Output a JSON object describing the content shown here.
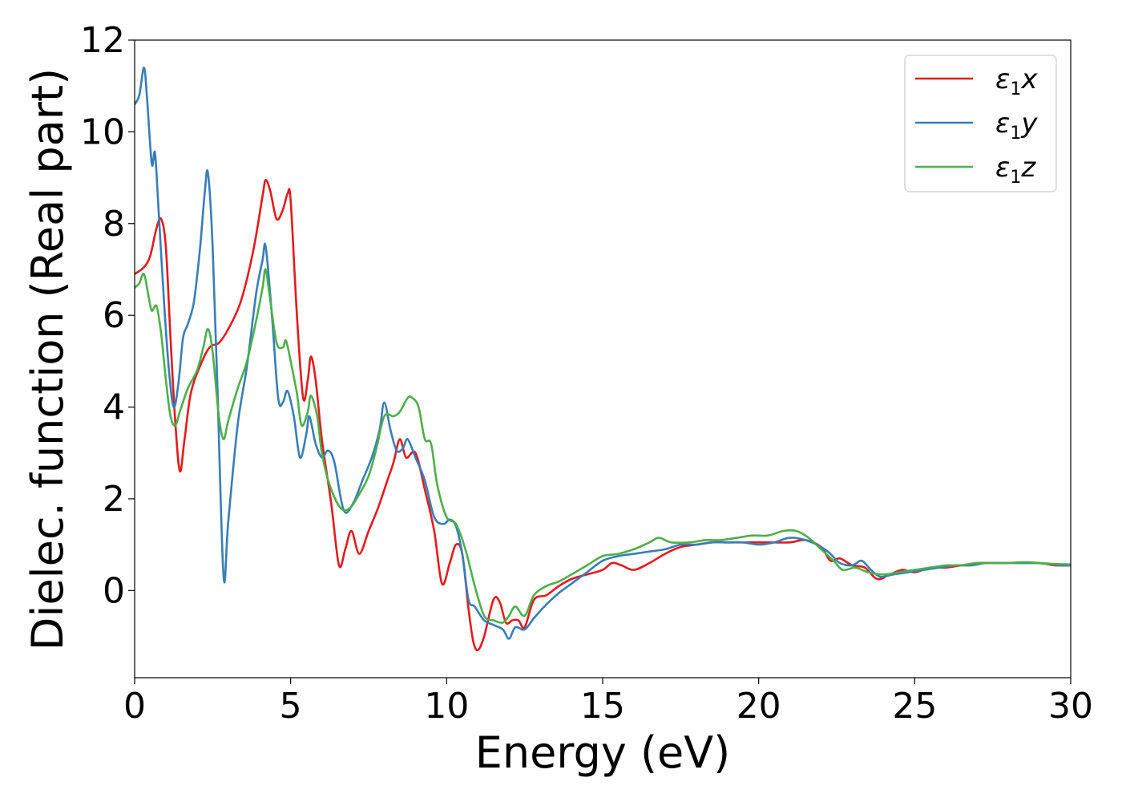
{
  "chart_data": {
    "type": "line",
    "title": "",
    "xlabel": "Energy (eV)",
    "ylabel": "Dielec. function (Real part)",
    "xlim": [
      0,
      30
    ],
    "ylim": [
      -1.9,
      12
    ],
    "xticks": [
      0,
      5,
      10,
      15,
      20,
      25,
      30
    ],
    "yticks": [
      0,
      2,
      4,
      6,
      8,
      10,
      12
    ],
    "grid": false,
    "legend_position": "top-right",
    "series": [
      {
        "name": "ε1x",
        "legend": {
          "main": "ε",
          "sub": "1",
          "tail": "x"
        },
        "color": "#e41a1c",
        "points": [
          [
            0,
            6.9
          ],
          [
            0.3,
            7.05
          ],
          [
            0.5,
            7.3
          ],
          [
            0.7,
            7.9
          ],
          [
            0.85,
            8.1
          ],
          [
            1.0,
            7.5
          ],
          [
            1.15,
            5.5
          ],
          [
            1.3,
            3.7
          ],
          [
            1.45,
            2.6
          ],
          [
            1.6,
            3.3
          ],
          [
            1.8,
            4.3
          ],
          [
            2.1,
            4.9
          ],
          [
            2.4,
            5.3
          ],
          [
            2.7,
            5.4
          ],
          [
            3.0,
            5.7
          ],
          [
            3.4,
            6.3
          ],
          [
            3.8,
            7.4
          ],
          [
            4.1,
            8.6
          ],
          [
            4.2,
            8.95
          ],
          [
            4.35,
            8.7
          ],
          [
            4.55,
            8.1
          ],
          [
            4.75,
            8.3
          ],
          [
            4.9,
            8.65
          ],
          [
            5.0,
            8.5
          ],
          [
            5.2,
            6.0
          ],
          [
            5.4,
            4.2
          ],
          [
            5.55,
            4.6
          ],
          [
            5.65,
            5.1
          ],
          [
            5.8,
            4.6
          ],
          [
            6.0,
            3.3
          ],
          [
            6.3,
            1.9
          ],
          [
            6.55,
            0.55
          ],
          [
            6.75,
            0.9
          ],
          [
            6.95,
            1.3
          ],
          [
            7.2,
            0.8
          ],
          [
            7.5,
            1.3
          ],
          [
            7.8,
            1.8
          ],
          [
            8.1,
            2.4
          ],
          [
            8.3,
            2.8
          ],
          [
            8.5,
            3.3
          ],
          [
            8.7,
            2.9
          ],
          [
            9.0,
            3.0
          ],
          [
            9.3,
            2.2
          ],
          [
            9.6,
            1.3
          ],
          [
            9.85,
            0.15
          ],
          [
            10.1,
            0.6
          ],
          [
            10.3,
            1.0
          ],
          [
            10.5,
            0.8
          ],
          [
            10.7,
            -0.4
          ],
          [
            10.85,
            -1.1
          ],
          [
            11.0,
            -1.3
          ],
          [
            11.2,
            -1.0
          ],
          [
            11.5,
            -0.2
          ],
          [
            11.7,
            -0.25
          ],
          [
            11.9,
            -0.7
          ],
          [
            12.1,
            -0.65
          ],
          [
            12.3,
            -0.65
          ],
          [
            12.5,
            -0.8
          ],
          [
            12.8,
            -0.2
          ],
          [
            13.2,
            -0.1
          ],
          [
            13.6,
            0.1
          ],
          [
            14.0,
            0.25
          ],
          [
            14.5,
            0.35
          ],
          [
            15.0,
            0.45
          ],
          [
            15.3,
            0.6
          ],
          [
            15.6,
            0.55
          ],
          [
            16.0,
            0.45
          ],
          [
            16.5,
            0.6
          ],
          [
            17.0,
            0.8
          ],
          [
            17.5,
            0.95
          ],
          [
            18.0,
            1.0
          ],
          [
            18.5,
            1.05
          ],
          [
            19.0,
            1.05
          ],
          [
            19.5,
            1.05
          ],
          [
            20.0,
            1.05
          ],
          [
            20.5,
            1.05
          ],
          [
            21.0,
            1.05
          ],
          [
            21.5,
            1.1
          ],
          [
            22.0,
            0.95
          ],
          [
            22.3,
            0.65
          ],
          [
            22.6,
            0.7
          ],
          [
            23.0,
            0.55
          ],
          [
            23.4,
            0.5
          ],
          [
            23.8,
            0.25
          ],
          [
            24.2,
            0.35
          ],
          [
            24.6,
            0.45
          ],
          [
            25.0,
            0.4
          ],
          [
            25.5,
            0.5
          ],
          [
            26.0,
            0.5
          ],
          [
            26.5,
            0.55
          ],
          [
            27.0,
            0.6
          ],
          [
            27.5,
            0.6
          ],
          [
            28.0,
            0.6
          ],
          [
            28.5,
            0.6
          ],
          [
            29.0,
            0.6
          ],
          [
            29.5,
            0.55
          ],
          [
            30.0,
            0.55
          ]
        ]
      },
      {
        "name": "ε1y",
        "legend": {
          "main": "ε",
          "sub": "1",
          "tail": "y"
        },
        "color": "#377eb8",
        "points": [
          [
            0,
            10.6
          ],
          [
            0.15,
            10.8
          ],
          [
            0.3,
            11.4
          ],
          [
            0.4,
            10.7
          ],
          [
            0.55,
            9.3
          ],
          [
            0.65,
            9.55
          ],
          [
            0.75,
            8.5
          ],
          [
            0.95,
            6.2
          ],
          [
            1.1,
            4.8
          ],
          [
            1.25,
            4.0
          ],
          [
            1.4,
            4.5
          ],
          [
            1.55,
            5.5
          ],
          [
            1.7,
            5.8
          ],
          [
            1.9,
            6.3
          ],
          [
            2.1,
            7.5
          ],
          [
            2.25,
            8.7
          ],
          [
            2.35,
            9.1
          ],
          [
            2.5,
            7.5
          ],
          [
            2.65,
            4.5
          ],
          [
            2.85,
            0.3
          ],
          [
            3.0,
            1.5
          ],
          [
            3.3,
            3.6
          ],
          [
            3.6,
            4.9
          ],
          [
            3.9,
            6.5
          ],
          [
            4.1,
            7.2
          ],
          [
            4.2,
            7.5
          ],
          [
            4.4,
            6.0
          ],
          [
            4.6,
            4.2
          ],
          [
            4.75,
            4.1
          ],
          [
            4.9,
            4.35
          ],
          [
            5.1,
            3.8
          ],
          [
            5.3,
            2.9
          ],
          [
            5.5,
            3.4
          ],
          [
            5.6,
            3.8
          ],
          [
            5.8,
            3.2
          ],
          [
            6.0,
            2.9
          ],
          [
            6.2,
            3.05
          ],
          [
            6.4,
            2.8
          ],
          [
            6.7,
            1.75
          ],
          [
            7.0,
            1.9
          ],
          [
            7.3,
            2.4
          ],
          [
            7.6,
            2.9
          ],
          [
            7.85,
            3.5
          ],
          [
            8.0,
            4.1
          ],
          [
            8.2,
            3.5
          ],
          [
            8.4,
            3.05
          ],
          [
            8.6,
            3.1
          ],
          [
            8.75,
            3.3
          ],
          [
            9.0,
            2.9
          ],
          [
            9.3,
            2.4
          ],
          [
            9.6,
            1.6
          ],
          [
            9.9,
            1.45
          ],
          [
            10.1,
            1.55
          ],
          [
            10.3,
            1.4
          ],
          [
            10.5,
            0.8
          ],
          [
            10.7,
            -0.2
          ],
          [
            10.9,
            -0.35
          ],
          [
            11.2,
            -0.65
          ],
          [
            11.5,
            -0.75
          ],
          [
            11.8,
            -0.85
          ],
          [
            12.0,
            -1.05
          ],
          [
            12.2,
            -0.8
          ],
          [
            12.5,
            -0.85
          ],
          [
            12.8,
            -0.6
          ],
          [
            13.2,
            -0.3
          ],
          [
            13.6,
            -0.05
          ],
          [
            14.0,
            0.15
          ],
          [
            14.5,
            0.4
          ],
          [
            15.0,
            0.65
          ],
          [
            15.5,
            0.75
          ],
          [
            16.0,
            0.8
          ],
          [
            16.5,
            0.85
          ],
          [
            17.0,
            0.9
          ],
          [
            17.5,
            1.0
          ],
          [
            18.0,
            1.0
          ],
          [
            18.5,
            1.05
          ],
          [
            19.0,
            1.05
          ],
          [
            19.5,
            1.05
          ],
          [
            20.0,
            1.0
          ],
          [
            20.5,
            1.05
          ],
          [
            21.0,
            1.15
          ],
          [
            21.5,
            1.1
          ],
          [
            22.0,
            0.95
          ],
          [
            22.3,
            0.8
          ],
          [
            22.6,
            0.6
          ],
          [
            23.0,
            0.55
          ],
          [
            23.3,
            0.65
          ],
          [
            23.6,
            0.45
          ],
          [
            23.9,
            0.3
          ],
          [
            24.3,
            0.35
          ],
          [
            24.8,
            0.4
          ],
          [
            25.3,
            0.45
          ],
          [
            25.8,
            0.5
          ],
          [
            26.3,
            0.55
          ],
          [
            26.8,
            0.55
          ],
          [
            27.3,
            0.6
          ],
          [
            27.8,
            0.6
          ],
          [
            28.3,
            0.6
          ],
          [
            28.8,
            0.6
          ],
          [
            29.3,
            0.58
          ],
          [
            29.7,
            0.55
          ],
          [
            30.0,
            0.55
          ]
        ]
      },
      {
        "name": "ε1z",
        "legend": {
          "main": "ε",
          "sub": "1",
          "tail": "z"
        },
        "color": "#4daf4a",
        "points": [
          [
            0,
            6.6
          ],
          [
            0.15,
            6.7
          ],
          [
            0.3,
            6.9
          ],
          [
            0.45,
            6.4
          ],
          [
            0.55,
            6.1
          ],
          [
            0.7,
            6.2
          ],
          [
            0.85,
            5.6
          ],
          [
            1.0,
            4.6
          ],
          [
            1.15,
            3.8
          ],
          [
            1.3,
            3.6
          ],
          [
            1.45,
            3.9
          ],
          [
            1.7,
            4.4
          ],
          [
            2.0,
            4.8
          ],
          [
            2.2,
            5.3
          ],
          [
            2.35,
            5.7
          ],
          [
            2.5,
            5.2
          ],
          [
            2.7,
            3.8
          ],
          [
            2.85,
            3.3
          ],
          [
            3.0,
            3.7
          ],
          [
            3.3,
            4.4
          ],
          [
            3.6,
            5.0
          ],
          [
            3.9,
            5.9
          ],
          [
            4.1,
            6.6
          ],
          [
            4.2,
            7.0
          ],
          [
            4.35,
            6.3
          ],
          [
            4.55,
            5.4
          ],
          [
            4.75,
            5.3
          ],
          [
            4.85,
            5.45
          ],
          [
            5.0,
            5.0
          ],
          [
            5.2,
            4.3
          ],
          [
            5.35,
            3.6
          ],
          [
            5.55,
            3.9
          ],
          [
            5.65,
            4.25
          ],
          [
            5.85,
            3.8
          ],
          [
            6.0,
            3.0
          ],
          [
            6.25,
            2.3
          ],
          [
            6.6,
            1.8
          ],
          [
            6.9,
            1.8
          ],
          [
            7.2,
            2.1
          ],
          [
            7.5,
            2.5
          ],
          [
            7.75,
            3.1
          ],
          [
            8.0,
            3.8
          ],
          [
            8.3,
            3.8
          ],
          [
            8.5,
            3.9
          ],
          [
            8.75,
            4.2
          ],
          [
            8.9,
            4.2
          ],
          [
            9.1,
            4.0
          ],
          [
            9.3,
            3.3
          ],
          [
            9.5,
            3.2
          ],
          [
            9.7,
            2.3
          ],
          [
            10.0,
            1.6
          ],
          [
            10.3,
            1.45
          ],
          [
            10.6,
            0.9
          ],
          [
            10.9,
            0.1
          ],
          [
            11.2,
            -0.55
          ],
          [
            11.5,
            -0.65
          ],
          [
            11.8,
            -0.7
          ],
          [
            12.0,
            -0.55
          ],
          [
            12.2,
            -0.35
          ],
          [
            12.5,
            -0.55
          ],
          [
            12.8,
            -0.1
          ],
          [
            13.2,
            0.1
          ],
          [
            13.6,
            0.2
          ],
          [
            14.0,
            0.35
          ],
          [
            14.5,
            0.55
          ],
          [
            15.0,
            0.75
          ],
          [
            15.5,
            0.8
          ],
          [
            16.0,
            0.9
          ],
          [
            16.5,
            1.05
          ],
          [
            16.8,
            1.15
          ],
          [
            17.2,
            1.05
          ],
          [
            17.8,
            1.05
          ],
          [
            18.3,
            1.1
          ],
          [
            18.8,
            1.1
          ],
          [
            19.3,
            1.15
          ],
          [
            19.8,
            1.2
          ],
          [
            20.3,
            1.2
          ],
          [
            20.8,
            1.3
          ],
          [
            21.2,
            1.3
          ],
          [
            21.6,
            1.15
          ],
          [
            22.0,
            0.9
          ],
          [
            22.4,
            0.65
          ],
          [
            22.7,
            0.45
          ],
          [
            23.1,
            0.5
          ],
          [
            23.5,
            0.4
          ],
          [
            24.0,
            0.35
          ],
          [
            24.5,
            0.4
          ],
          [
            25.0,
            0.45
          ],
          [
            25.5,
            0.5
          ],
          [
            26.0,
            0.55
          ],
          [
            26.5,
            0.55
          ],
          [
            27.0,
            0.6
          ],
          [
            27.5,
            0.6
          ],
          [
            28.0,
            0.6
          ],
          [
            28.5,
            0.62
          ],
          [
            29.0,
            0.6
          ],
          [
            29.5,
            0.58
          ],
          [
            30.0,
            0.57
          ]
        ]
      }
    ]
  }
}
